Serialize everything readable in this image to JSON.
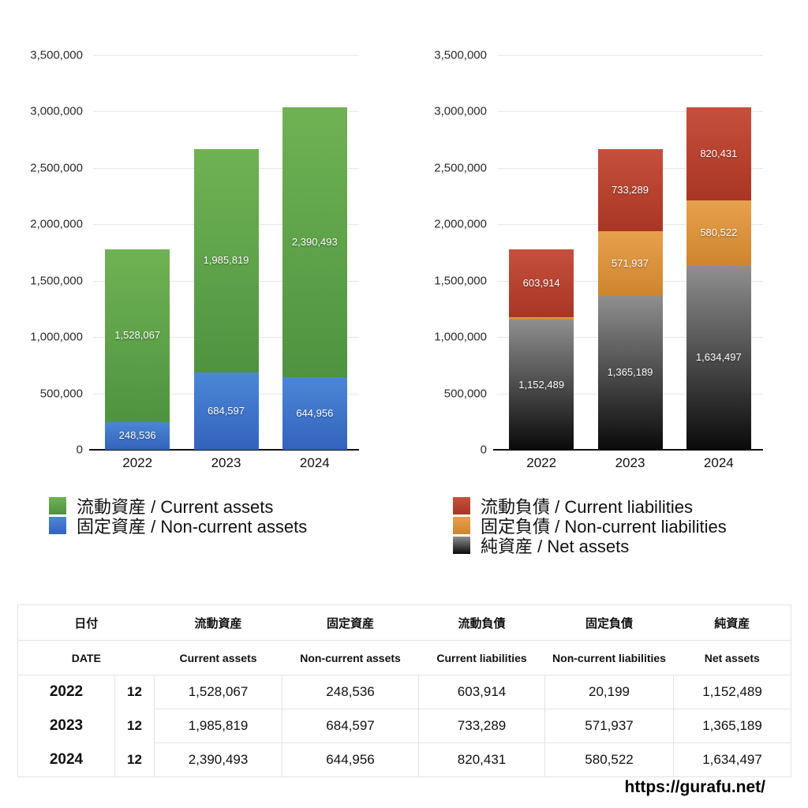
{
  "chart_data": [
    {
      "type": "bar",
      "stacked": true,
      "title": "",
      "categories": [
        "2022",
        "2023",
        "2024"
      ],
      "ylim": [
        0,
        3500000
      ],
      "yticks": [
        0,
        500000,
        1000000,
        1500000,
        2000000,
        2500000,
        3000000,
        3500000
      ],
      "grid": true,
      "legend_position": "bottom-left",
      "series": [
        {
          "label": "流動資産 / Current assets",
          "values": [
            1528067,
            1985819,
            2390493
          ],
          "gradient": [
            "#6fb254",
            "#4f9340"
          ]
        },
        {
          "label": "固定資産 / Non-current assets",
          "values": [
            248536,
            684597,
            644956
          ],
          "gradient": [
            "#4c87d6",
            "#3363bd"
          ]
        }
      ],
      "stack_bottom_to_top": [
        1,
        0
      ]
    },
    {
      "type": "bar",
      "stacked": true,
      "title": "",
      "categories": [
        "2022",
        "2023",
        "2024"
      ],
      "ylim": [
        0,
        3500000
      ],
      "yticks": [
        0,
        500000,
        1000000,
        1500000,
        2000000,
        2500000,
        3000000,
        3500000
      ],
      "grid": true,
      "legend_position": "bottom-left",
      "series": [
        {
          "label": "流動負債 / Current liabilities",
          "values": [
            603914,
            733289,
            820431
          ],
          "gradient": [
            "#c6503d",
            "#a93524"
          ]
        },
        {
          "label": "固定負債 / Non-current liabilities",
          "values": [
            20199,
            571937,
            580522
          ],
          "gradient": [
            "#e7a04d",
            "#cf852e"
          ]
        },
        {
          "label": "純資産 / Net assets",
          "values": [
            1152489,
            1365189,
            1634497
          ],
          "gradient": [
            "#8f8f8f",
            "#0a0a0a"
          ]
        }
      ],
      "stack_bottom_to_top": [
        2,
        1,
        0
      ]
    }
  ],
  "table": {
    "header_ja": [
      "日付",
      "流動資産",
      "固定資産",
      "流動負債",
      "固定負債",
      "純資産"
    ],
    "header_en": [
      "DATE",
      "Current assets",
      "Non-current assets",
      "Current liabilities",
      "Non-current liabilities",
      "Net assets"
    ],
    "rows": [
      {
        "year": "2022",
        "month": "12",
        "values": [
          "1,528,067",
          "248,536",
          "603,914",
          "20,199",
          "1,152,489"
        ]
      },
      {
        "year": "2023",
        "month": "12",
        "values": [
          "1,985,819",
          "684,597",
          "733,289",
          "571,937",
          "1,365,189"
        ]
      },
      {
        "year": "2024",
        "month": "12",
        "values": [
          "2,390,493",
          "644,956",
          "820,431",
          "580,522",
          "1,634,497"
        ]
      }
    ]
  },
  "footer": {
    "url": "https://gurafu.net/"
  }
}
